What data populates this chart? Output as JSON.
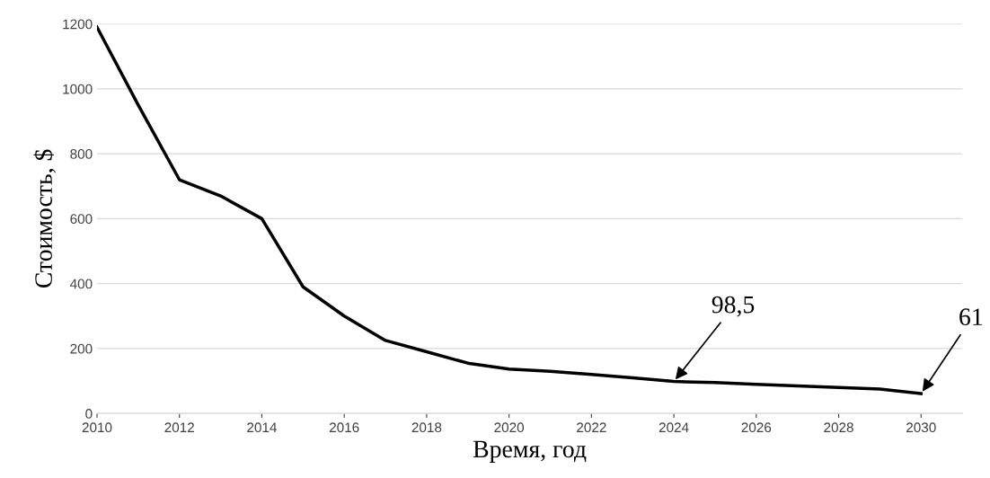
{
  "chart_data": {
    "type": "line",
    "xlabel": "Время, год",
    "ylabel": "Стоимость, $",
    "x": [
      2010,
      2011,
      2012,
      2013,
      2014,
      2015,
      2016,
      2017,
      2018,
      2019,
      2020,
      2021,
      2022,
      2023,
      2024,
      2025,
      2026,
      2027,
      2028,
      2029,
      2030
    ],
    "series": [
      {
        "color": "#000000",
        "values": [
          1190,
          950,
          720,
          670,
          600,
          390,
          300,
          225,
          190,
          155,
          137,
          130,
          120,
          110,
          98.5,
          95,
          90,
          85,
          80,
          75,
          61
        ]
      }
    ],
    "xlim": [
      2010,
      2031
    ],
    "xticks": [
      2010,
      2012,
      2014,
      2016,
      2018,
      2020,
      2022,
      2024,
      2026,
      2028,
      2030
    ],
    "ylim": [
      0,
      1200
    ],
    "yticks": [
      0,
      200,
      400,
      600,
      800,
      1000,
      1200
    ],
    "annotations": [
      {
        "text": "98,5",
        "x": 2024,
        "y": 98.5
      },
      {
        "text": "61",
        "x": 2030,
        "y": 61
      }
    ],
    "grid": "y",
    "legend": false,
    "marker": "none",
    "line_style": "solid"
  }
}
